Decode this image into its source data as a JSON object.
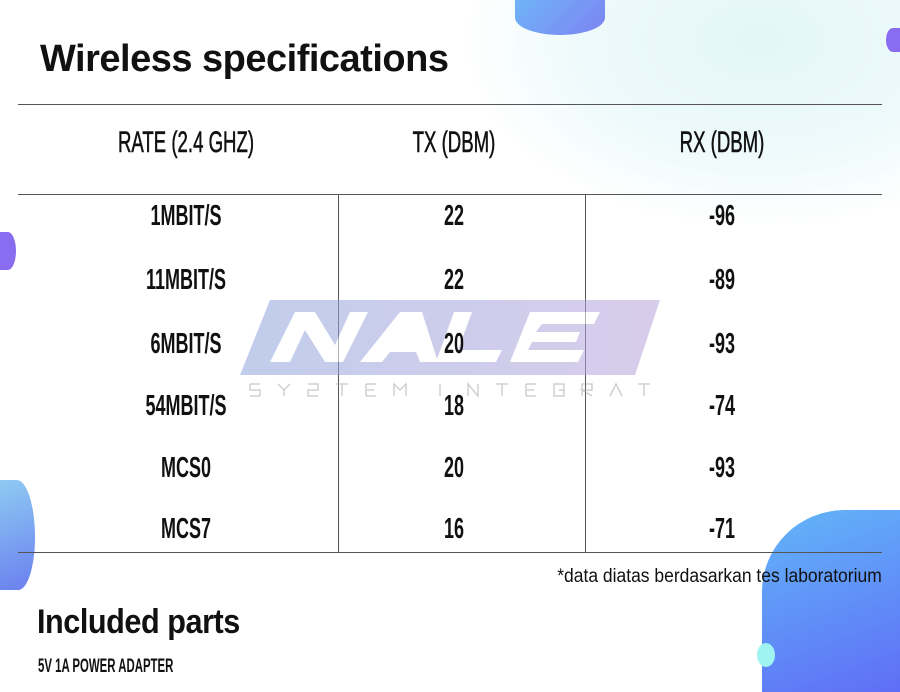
{
  "title": "Wireless specifications",
  "table": {
    "headers": [
      "RATE (2.4 GHZ)",
      "TX (DBM)",
      "RX (DBM)"
    ],
    "rows": [
      [
        "1MBIT/S",
        "22",
        "-96"
      ],
      [
        "11MBIT/S",
        "22",
        "-89"
      ],
      [
        "6MBIT/S",
        "20",
        "-93"
      ],
      [
        "54MBIT/S",
        "18",
        "-74"
      ],
      [
        "MCS0",
        "20",
        "-93"
      ],
      [
        "MCS7",
        "16",
        "-71"
      ]
    ]
  },
  "footnote": "*data diatas berdasarkan tes laboratorium",
  "included": {
    "heading": "Included parts",
    "items": [
      "5V 1A POWER ADAPTER"
    ]
  },
  "watermark": {
    "logo": "NALE",
    "tagline": "SYSTEM INTEGRATOR"
  },
  "colors": {
    "blob_blue": "#5b8ef5",
    "blob_purple": "#8a6cf0",
    "blob_cyan": "#9ff3f0"
  }
}
